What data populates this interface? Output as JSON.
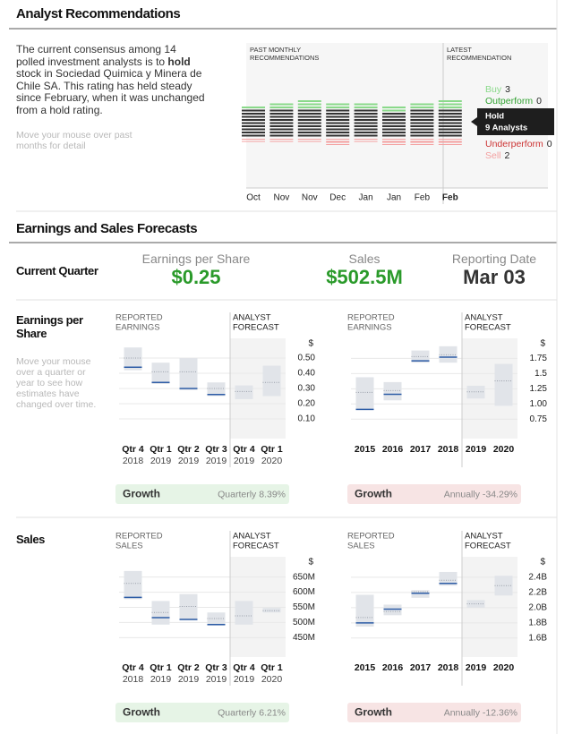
{
  "recommendations": {
    "title": "Analyst Recommendations",
    "summary_parts": [
      "The current consensus among 14 polled investment analysts is to ",
      "hold",
      " stock in Sociedad Quimica y Minera de Chile SA. This rating has held steady since February, when it was unchanged from a hold rating."
    ],
    "hint": "Move your mouse over past months for detail",
    "past_label": [
      "PAST MONTHLY",
      "RECOMMENDATIONS"
    ],
    "latest_label": [
      "LATEST",
      "RECOMMENDATION"
    ],
    "legend_labels": {
      "buy": "Buy",
      "outperform": "Outperform",
      "hold": "Hold",
      "underperform": "Underperform",
      "sell": "Sell"
    },
    "colors": {
      "buy": "#8ad98a",
      "outperform": "#33a333",
      "hold": "#333333",
      "underperform": "#cc3333",
      "sell": "#f4a0a0"
    },
    "months": [
      {
        "label": "Oct",
        "buy": 1,
        "outperform": 0,
        "hold": 9,
        "underperform": 0,
        "sell": 1
      },
      {
        "label": "Nov",
        "buy": 2,
        "outperform": 0,
        "hold": 9,
        "underperform": 0,
        "sell": 1
      },
      {
        "label": "Nov",
        "buy": 3,
        "outperform": 0,
        "hold": 9,
        "underperform": 0,
        "sell": 1
      },
      {
        "label": "Dec",
        "buy": 2,
        "outperform": 0,
        "hold": 9,
        "underperform": 0,
        "sell": 2
      },
      {
        "label": "Jan",
        "buy": 2,
        "outperform": 0,
        "hold": 9,
        "underperform": 0,
        "sell": 1
      },
      {
        "label": "Jan",
        "buy": 2,
        "outperform": 0,
        "hold": 8,
        "underperform": 0,
        "sell": 2
      },
      {
        "label": "Feb",
        "buy": 2,
        "outperform": 0,
        "hold": 9,
        "underperform": 0,
        "sell": 2
      },
      {
        "label": "Feb",
        "buy": 3,
        "outperform": 0,
        "hold": 9,
        "hold_label": "9 Analysts",
        "underperform": 0,
        "sell": 2
      }
    ]
  },
  "forecasts": {
    "title": "Earnings and Sales Forecasts",
    "current_quarter": {
      "label": "Current Quarter",
      "items": [
        {
          "name": "Earnings per Share",
          "value": "$0.25",
          "color": "#2a9a2a"
        },
        {
          "name": "Sales",
          "value": "$502.5M",
          "color": "#2a9a2a"
        },
        {
          "name": "Reporting Date",
          "value": "Mar 03",
          "color": "#333333"
        }
      ]
    },
    "hint": "Move your mouse over a quarter or year to see how estimates have changed over time.",
    "sections": [
      {
        "label": "Earnings per Share",
        "charts": [
          {
            "reported_label": [
              "REPORTED",
              "EARNINGS"
            ],
            "forecast_label": [
              "ANALYST",
              "FORECAST"
            ],
            "unit": "$",
            "ylim": [
              -0.03,
              0.63
            ],
            "yticks": [
              {
                "value": 0.5,
                "label": "0.50"
              },
              {
                "value": 0.4,
                "label": "0.40"
              },
              {
                "value": 0.3,
                "label": "0.30"
              },
              {
                "value": 0.2,
                "label": "0.20"
              },
              {
                "value": 0.1,
                "label": "0.10"
              }
            ],
            "periods": [
              {
                "label": "Qtr 4",
                "year": "2018",
                "high": 0.57,
                "low": 0.42,
                "consensus": 0.5,
                "actual": 0.44
              },
              {
                "label": "Qtr 1",
                "year": "2019",
                "high": 0.47,
                "low": 0.33,
                "consensus": 0.41,
                "actual": 0.34
              },
              {
                "label": "Qtr 2",
                "year": "2019",
                "high": 0.5,
                "low": 0.29,
                "consensus": 0.41,
                "actual": 0.3
              },
              {
                "label": "Qtr 3",
                "year": "2019",
                "high": 0.34,
                "low": 0.25,
                "consensus": 0.3,
                "actual": 0.26
              },
              {
                "label": "Qtr 4",
                "year": "2019",
                "high": 0.32,
                "low": 0.23,
                "consensus": 0.28
              },
              {
                "label": "Qtr 1",
                "year": "2020",
                "high": 0.45,
                "low": 0.25,
                "consensus": 0.34
              }
            ],
            "growth": {
              "label": "Growth",
              "text": "Quarterly 8.39%",
              "color": "#e6f4e6"
            }
          },
          {
            "reported_label": [
              "REPORTED",
              "EARNINGS"
            ],
            "forecast_label": [
              "ANALYST",
              "FORECAST"
            ],
            "unit": "$",
            "ylim": [
              0.43,
              2.08
            ],
            "yticks": [
              1.75,
              1.5,
              1.25,
              {
                "value": 1,
                "label": "1.00"
              },
              0.75
            ],
            "periods": [
              {
                "label": "2015",
                "high": 1.44,
                "low": 0.9,
                "consensus": 1.19,
                "actual": 0.91
              },
              {
                "label": "2016",
                "high": 1.36,
                "low": 1.06,
                "consensus": 1.22,
                "actual": 1.16
              },
              {
                "label": "2017",
                "high": 1.88,
                "low": 1.68,
                "consensus": 1.78,
                "actual": 1.71
              },
              {
                "label": "2018",
                "high": 1.95,
                "low": 1.68,
                "consensus": 1.81,
                "actual": 1.77
              },
              {
                "label": "2019",
                "high": 1.3,
                "low": 1.09,
                "consensus": 1.2
              },
              {
                "label": "2020",
                "high": 1.66,
                "low": 0.97,
                "consensus": 1.38
              }
            ],
            "growth": {
              "label": "Growth",
              "text": "Annually -34.29%",
              "color": "#f7e4e4"
            }
          }
        ]
      },
      {
        "label": "Sales",
        "charts": [
          {
            "reported_label": [
              "REPORTED",
              "SALES"
            ],
            "forecast_label": [
              "ANALYST",
              "FORECAST"
            ],
            "unit": "$",
            "ylim": [
              386,
              717
            ],
            "yticks": [
              {
                "value": 650,
                "label": "650M"
              },
              {
                "value": 600,
                "label": "600M"
              },
              {
                "value": 550,
                "label": "550M"
              },
              {
                "value": 500,
                "label": "500M"
              },
              {
                "value": 450,
                "label": "450M"
              }
            ],
            "periods": [
              {
                "label": "Qtr 4",
                "year": "2018",
                "high": 670,
                "low": 577,
                "consensus": 629,
                "actual": 583
              },
              {
                "label": "Qtr 1",
                "year": "2019",
                "high": 571,
                "low": 493,
                "consensus": 533,
                "actual": 516
              },
              {
                "label": "Qtr 2",
                "year": "2019",
                "high": 594,
                "low": 507,
                "consensus": 553,
                "actual": 510
              },
              {
                "label": "Qtr 3",
                "year": "2019",
                "high": 533,
                "low": 490,
                "consensus": 513,
                "actual": 493
              },
              {
                "label": "Qtr 4",
                "year": "2019",
                "high": 571,
                "low": 493,
                "consensus": 522
              },
              {
                "label": "Qtr 1",
                "year": "2020",
                "high": 548,
                "low": 533,
                "consensus": 539
              }
            ],
            "growth": {
              "label": "Growth",
              "text": "Quarterly 6.21%",
              "color": "#e6f4e6"
            }
          },
          {
            "reported_label": [
              "REPORTED",
              "SALES"
            ],
            "forecast_label": [
              "ANALYST",
              "FORECAST"
            ],
            "unit": "$",
            "ylim": [
              1.35,
              2.67
            ],
            "yticks": [
              {
                "value": 2.4,
                "label": "2.4B"
              },
              {
                "value": 2.2,
                "label": "2.2B"
              },
              {
                "value": 2.0,
                "label": "2.0B"
              },
              {
                "value": 1.8,
                "label": "1.8B"
              },
              {
                "value": 1.6,
                "label": "1.6B"
              }
            ],
            "periods": [
              {
                "label": "2015",
                "high": 2.17,
                "low": 1.75,
                "consensus": 1.87,
                "actual": 1.8
              },
              {
                "label": "2016",
                "high": 2.04,
                "low": 1.9,
                "consensus": 1.95,
                "actual": 1.98
              },
              {
                "label": "2017",
                "high": 2.23,
                "low": 2.13,
                "consensus": 2.21,
                "actual": 2.19
              },
              {
                "label": "2018",
                "high": 2.47,
                "low": 2.29,
                "consensus": 2.36,
                "actual": 2.32
              },
              {
                "label": "2019",
                "high": 2.1,
                "low": 2.0,
                "consensus": 2.05
              },
              {
                "label": "2020",
                "high": 2.42,
                "low": 2.16,
                "consensus": 2.29
              }
            ],
            "growth": {
              "label": "Growth",
              "text": "Annually -12.36%",
              "color": "#f7e4e4"
            }
          }
        ]
      }
    ]
  }
}
